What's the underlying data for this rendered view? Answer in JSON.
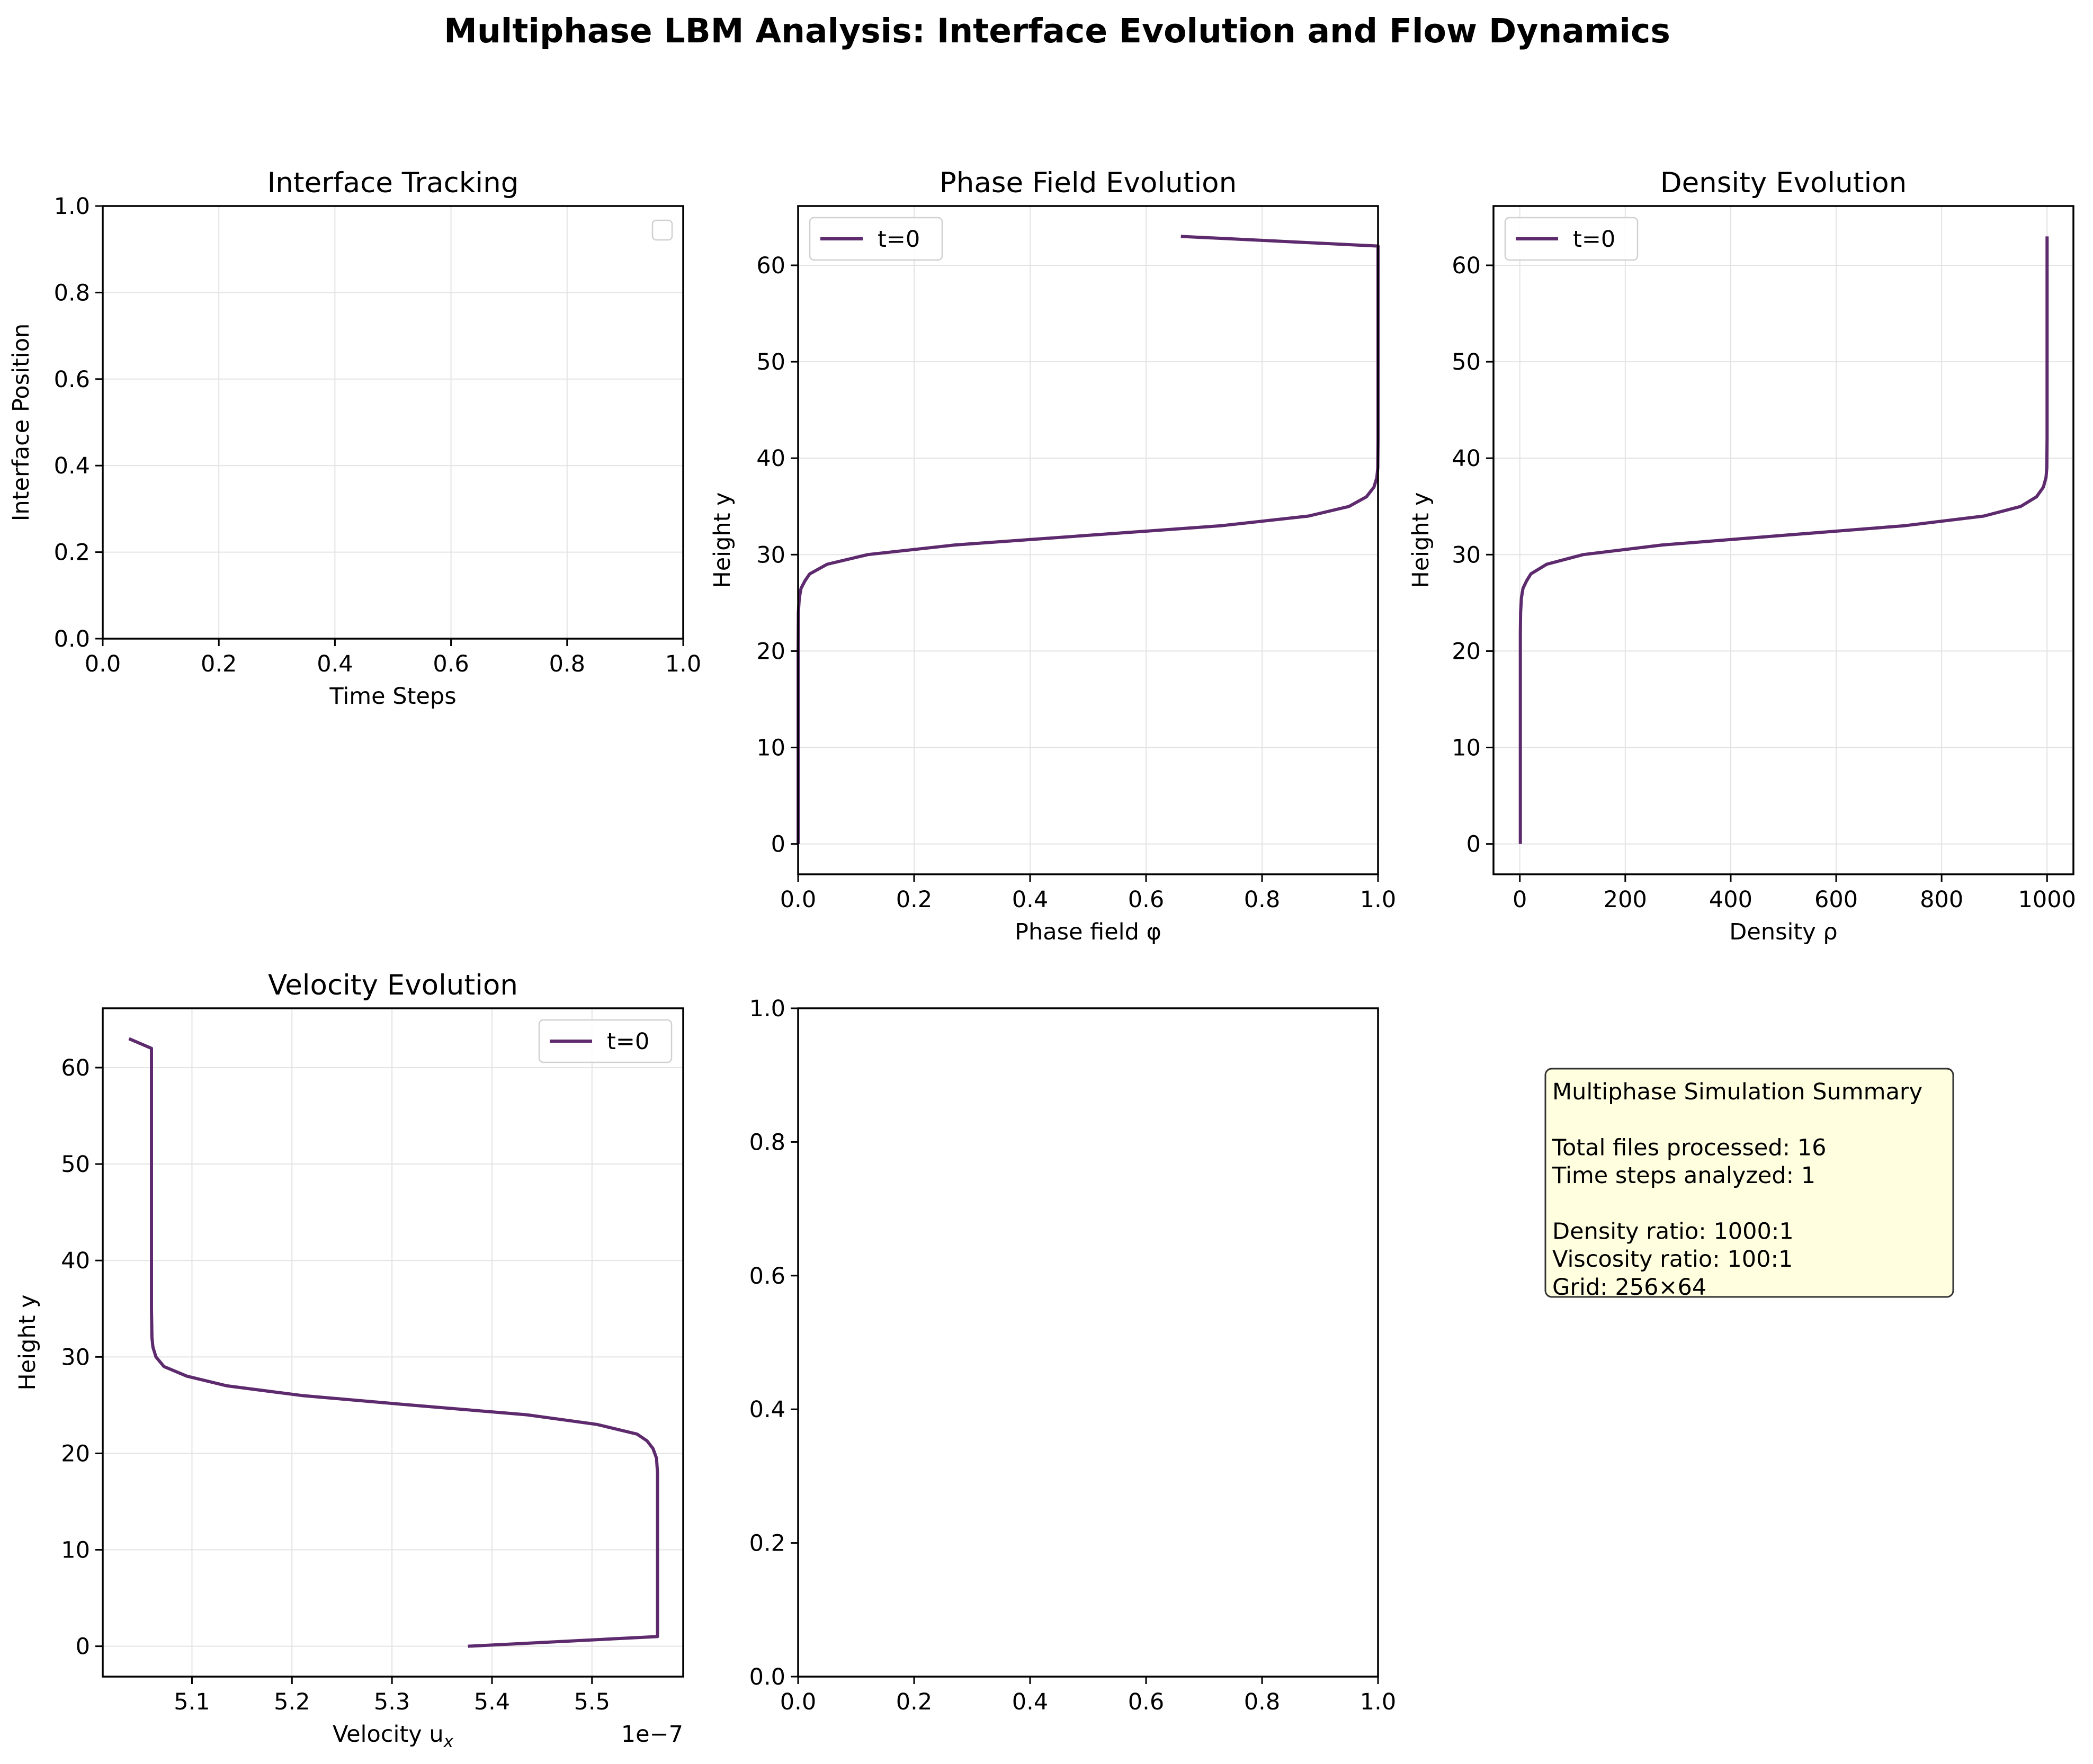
{
  "figure": {
    "suptitle": "Multiphase LBM Analysis: Interface Evolution and Flow Dynamics",
    "line_color": "#5e2a6e",
    "grid_color": "#e3e3e3"
  },
  "chart_data": [
    {
      "id": "interface",
      "type": "line",
      "title": "Interface Tracking",
      "xlabel": "Time Steps",
      "ylabel": "Interface Position",
      "xlim": [
        0,
        1
      ],
      "ylim": [
        0,
        1
      ],
      "xticks": [
        0.0,
        0.2,
        0.4,
        0.6,
        0.8,
        1.0
      ],
      "xtick_labels": [
        "0.0",
        "0.2",
        "0.4",
        "0.6",
        "0.8",
        "1.0"
      ],
      "yticks": [
        0.0,
        0.2,
        0.4,
        0.6,
        0.8,
        1.0
      ],
      "ytick_labels": [
        "0.0",
        "0.2",
        "0.4",
        "0.6",
        "0.8",
        "1.0"
      ],
      "grid": true,
      "legend": "upper right (empty)",
      "series": []
    },
    {
      "id": "phase",
      "type": "line",
      "title": "Phase Field Evolution",
      "xlabel": "Phase field φ",
      "ylabel": "Height y",
      "xlim": [
        0,
        1
      ],
      "ylim": [
        -3.15,
        66.15
      ],
      "xticks": [
        0.0,
        0.2,
        0.4,
        0.6,
        0.8,
        1.0
      ],
      "xtick_labels": [
        "0.0",
        "0.2",
        "0.4",
        "0.6",
        "0.8",
        "1.0"
      ],
      "yticks": [
        0,
        10,
        20,
        30,
        40,
        50,
        60
      ],
      "ytick_labels": [
        "0",
        "10",
        "20",
        "30",
        "40",
        "50",
        "60"
      ],
      "grid": true,
      "legend": "upper left",
      "series": [
        {
          "name": "t=0",
          "x": [
            0.0,
            0.0,
            0.0005,
            0.002,
            0.005,
            0.012,
            0.02,
            0.05,
            0.12,
            0.27,
            0.5,
            0.73,
            0.88,
            0.95,
            0.98,
            0.993,
            0.998,
            0.9995,
            1.0,
            1.0,
            1.0,
            0.66
          ],
          "y": [
            0,
            20,
            24,
            25.5,
            26.5,
            27.3,
            28,
            29,
            30,
            31,
            32,
            33,
            34,
            35,
            36,
            37,
            38,
            39,
            42,
            62,
            62,
            63
          ]
        }
      ]
    },
    {
      "id": "density",
      "type": "line",
      "title": "Density Evolution",
      "xlabel": "Density ρ",
      "ylabel": "Height y",
      "xlim": [
        -49.95,
        1049.95
      ],
      "ylim": [
        -3.15,
        66.15
      ],
      "xticks": [
        0,
        200,
        400,
        600,
        800,
        1000
      ],
      "xtick_labels": [
        "0",
        "200",
        "400",
        "600",
        "800",
        "1000"
      ],
      "yticks": [
        0,
        10,
        20,
        30,
        40,
        50,
        60
      ],
      "ytick_labels": [
        "0",
        "10",
        "20",
        "30",
        "40",
        "50",
        "60"
      ],
      "grid": true,
      "legend": "upper left",
      "series": [
        {
          "name": "t=0",
          "x": [
            1,
            1,
            1.5,
            3,
            6,
            13,
            21,
            51,
            120,
            270,
            500,
            730,
            880,
            950,
            980,
            993,
            998,
            999.5,
            1000,
            1000
          ],
          "y": [
            0,
            22,
            24,
            25.5,
            26.5,
            27.3,
            28,
            29,
            30,
            31,
            32,
            33,
            34,
            35,
            36,
            37,
            38,
            39,
            42,
            63
          ]
        }
      ]
    },
    {
      "id": "velocity",
      "type": "line",
      "title": "Velocity Evolution",
      "xlabel": "Velocity u",
      "xlabel_sub": "x",
      "ylabel": "Height y",
      "xlim": [
        5.0108e-07,
        5.5912e-07
      ],
      "ylim": [
        -3.15,
        66.15
      ],
      "xticks": [
        5.1e-07,
        5.2e-07,
        5.3e-07,
        5.4e-07,
        5.5e-07
      ],
      "xtick_labels": [
        "5.1",
        "5.2",
        "5.3",
        "5.4",
        "5.5"
      ],
      "x_offset_label": "1e−7",
      "yticks": [
        0,
        10,
        20,
        30,
        40,
        50,
        60
      ],
      "ytick_labels": [
        "0",
        "10",
        "20",
        "30",
        "40",
        "50",
        "60"
      ],
      "grid": true,
      "legend": "upper right",
      "series": [
        {
          "name": "t=0",
          "x": [
            5.376e-07,
            5.5655e-07,
            5.5655e-07,
            5.5655e-07,
            5.5645e-07,
            5.561e-07,
            5.555e-07,
            5.545e-07,
            5.505e-07,
            5.435e-07,
            5.32e-07,
            5.21e-07,
            5.135e-07,
            5.095e-07,
            5.072e-07,
            5.064e-07,
            5.061e-07,
            5.06e-07,
            5.0595e-07,
            5.0595e-07,
            5.0595e-07,
            5.037e-07
          ],
          "y": [
            0,
            1,
            10,
            18,
            19.5,
            20.5,
            21.3,
            22,
            23,
            24,
            25,
            26,
            27,
            28,
            29,
            30,
            31,
            32,
            35,
            62,
            62,
            63
          ]
        }
      ]
    },
    {
      "id": "empty",
      "type": "line",
      "title": "",
      "xlabel": "",
      "ylabel": "",
      "xlim": [
        0,
        1
      ],
      "ylim": [
        0,
        1
      ],
      "xticks": [
        0.0,
        0.2,
        0.4,
        0.6,
        0.8,
        1.0
      ],
      "xtick_labels": [
        "0.0",
        "0.2",
        "0.4",
        "0.6",
        "0.8",
        "1.0"
      ],
      "yticks": [
        0.0,
        0.2,
        0.4,
        0.6,
        0.8,
        1.0
      ],
      "ytick_labels": [
        "0.0",
        "0.2",
        "0.4",
        "0.6",
        "0.8",
        "1.0"
      ],
      "grid": false,
      "legend": "none",
      "series": []
    }
  ],
  "summary": {
    "lines": [
      "Multiphase Simulation Summary",
      "",
      "Total files processed: 16",
      "Time steps analyzed: 1",
      "",
      "Density ratio: 1000:1",
      "Viscosity ratio: 100:1",
      "Grid: 256×64"
    ],
    "background": "#ffffe0"
  }
}
